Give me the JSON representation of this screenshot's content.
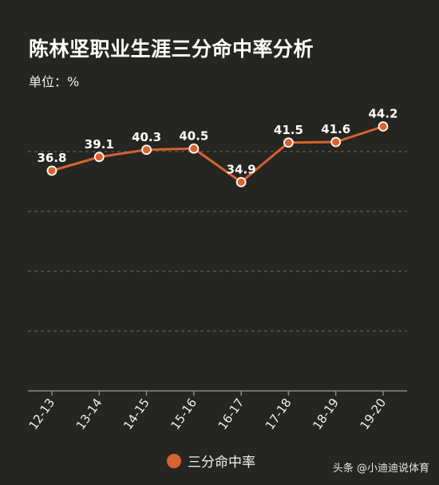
{
  "title": "陈林坚职业生涯三分命中率分析",
  "unit_label": "单位：%",
  "watermark": "头条 @小迪迪说体育",
  "colors": {
    "background": "#252522",
    "series": "#d9622e",
    "grid": "#6a6a62",
    "text": "#ffffff"
  },
  "chart_data": {
    "type": "line",
    "title": "陈林坚职业生涯三分命中率分析",
    "subtitle": "单位：%",
    "categories": [
      "12-13",
      "13-14",
      "14-15",
      "15-16",
      "16-17",
      "17-18",
      "18-19",
      "19-20"
    ],
    "series": [
      {
        "name": "三分命中率",
        "values": [
          36.8,
          39.1,
          40.3,
          40.5,
          34.9,
          41.5,
          41.6,
          44.2
        ],
        "labels": [
          "36.8",
          "39.1",
          "40.3",
          "40.5",
          "34.9",
          "41.5",
          "41.6",
          "44.2"
        ]
      }
    ],
    "ylim": [
      0,
      50
    ],
    "grid": true,
    "legend_position": "bottom"
  }
}
